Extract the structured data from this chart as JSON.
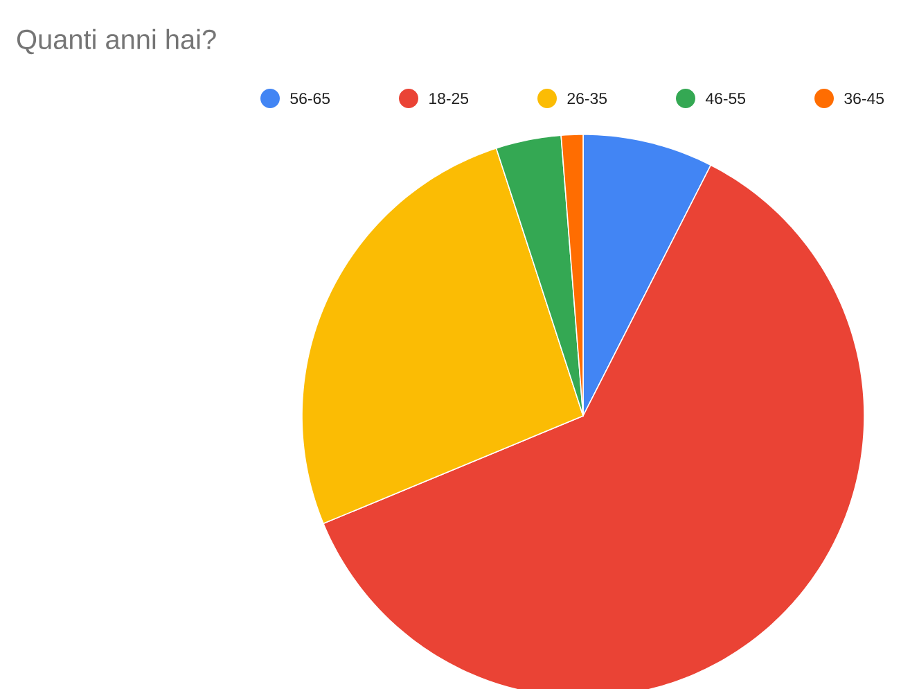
{
  "chart_data": {
    "type": "pie",
    "title": "Quanti anni hai?",
    "categories": [
      "56-65",
      "18-25",
      "26-35",
      "46-55",
      "36-45"
    ],
    "values": [
      7.5,
      61.25,
      26.25,
      3.75,
      1.25
    ],
    "colors": [
      "#4285f4",
      "#ea4335",
      "#fbbc04",
      "#34a853",
      "#ff6d01"
    ],
    "legend": "top"
  }
}
